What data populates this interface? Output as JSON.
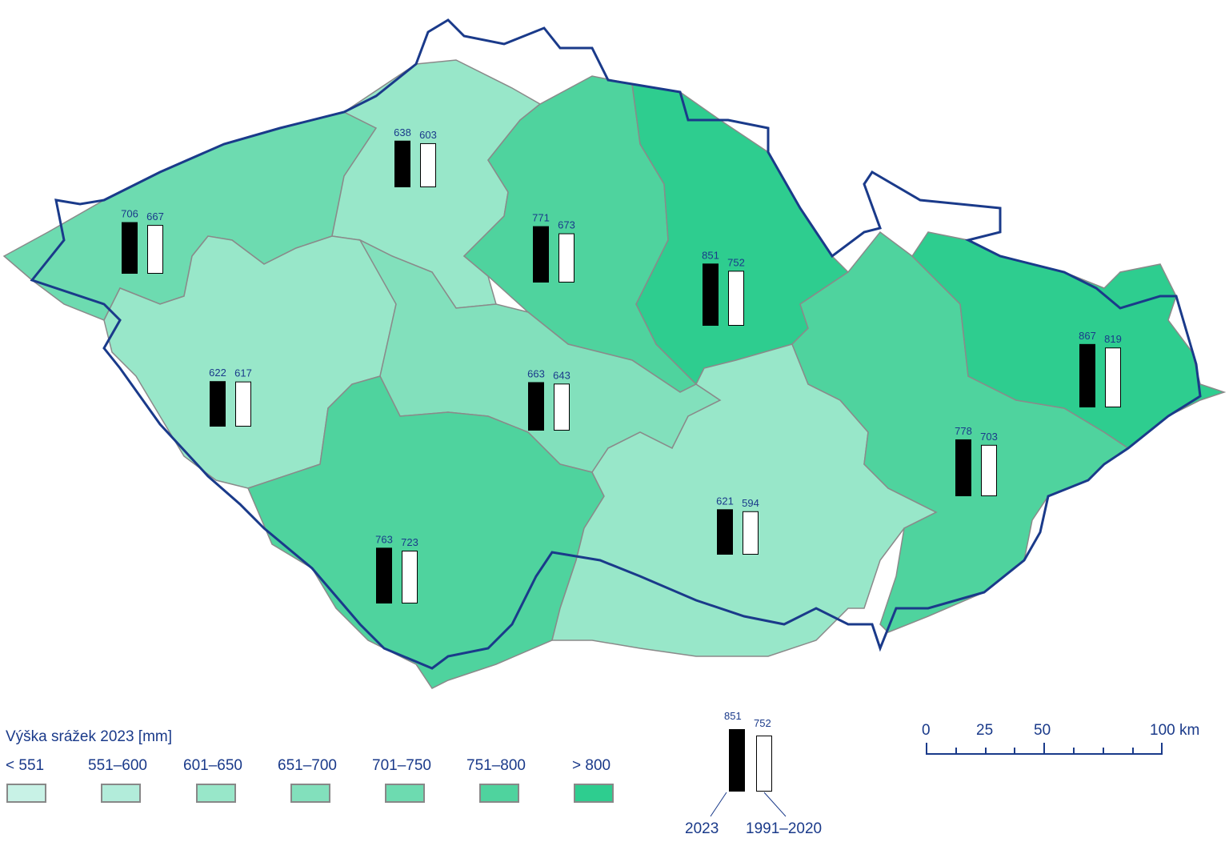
{
  "legend": {
    "title": "Výška srážek 2023 [mm]",
    "classes": [
      {
        "label": "< 551",
        "color": "#c8f2e6"
      },
      {
        "label": "551–600",
        "color": "#b2ecda"
      },
      {
        "label": "601–650",
        "color": "#98e7c9"
      },
      {
        "label": "651–700",
        "color": "#82e0bc"
      },
      {
        "label": "701–750",
        "color": "#6ddbb0"
      },
      {
        "label": "751–800",
        "color": "#4fd39e"
      },
      {
        "label": "> 800",
        "color": "#2ecd8f"
      }
    ]
  },
  "bar_legend": {
    "value_2023": "851",
    "value_normal": "752",
    "label_2023": "2023",
    "label_normal": "1991–2020"
  },
  "scale_bar": {
    "ticks": [
      "0",
      "25",
      "50",
      "100 km"
    ]
  },
  "regions": [
    {
      "value_2023": 706,
      "value_normal": 667,
      "class": 4
    },
    {
      "value_2023": 638,
      "value_normal": 603,
      "class": 2
    },
    {
      "value_2023": 771,
      "value_normal": 673,
      "class": 5
    },
    {
      "value_2023": 851,
      "value_normal": 752,
      "class": 6
    },
    {
      "value_2023": 622,
      "value_normal": 617,
      "class": 2
    },
    {
      "value_2023": 663,
      "value_normal": 643,
      "class": 3
    },
    {
      "value_2023": 763,
      "value_normal": 723,
      "class": 5
    },
    {
      "value_2023": 621,
      "value_normal": 594,
      "class": 2
    },
    {
      "value_2023": 778,
      "value_normal": 703,
      "class": 5
    },
    {
      "value_2023": 867,
      "value_normal": 819,
      "class": 6
    }
  ],
  "colors": {
    "border": "#1a3a8a",
    "region_outline": "#8a8a8a",
    "river": "#5cb8d8"
  }
}
